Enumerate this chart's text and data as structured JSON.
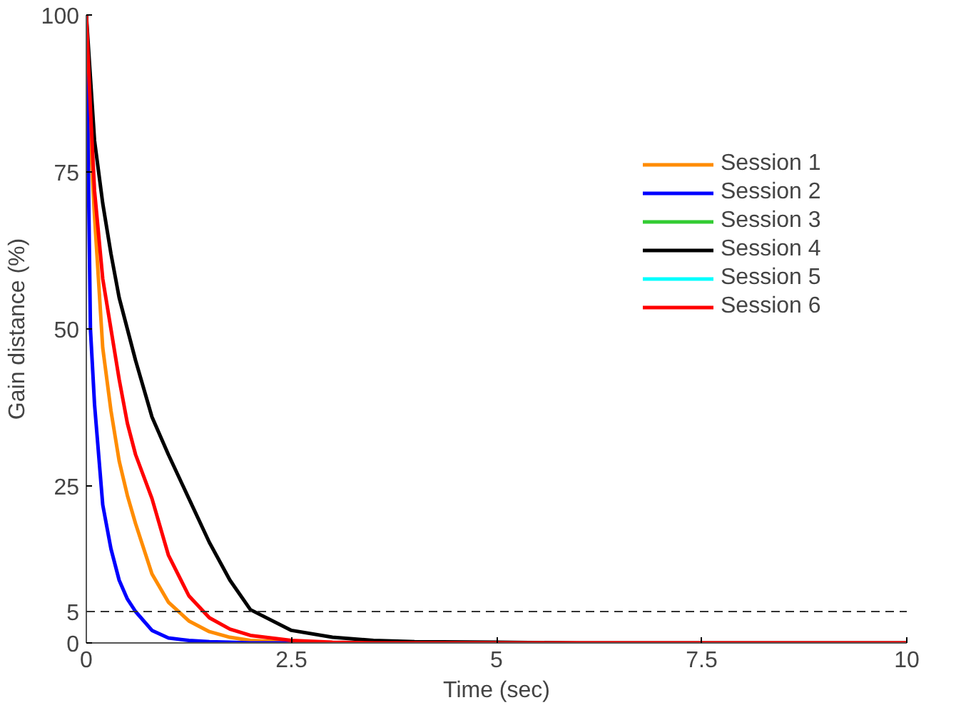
{
  "chart_data": {
    "type": "line",
    "xlabel": "Time (sec)",
    "ylabel": "Gain distance (%)",
    "x": [
      0,
      0.05,
      0.1,
      0.2,
      0.3,
      0.4,
      0.5,
      0.6,
      0.8,
      1.0,
      1.25,
      1.5,
      1.75,
      2,
      2.5,
      3,
      3.5,
      4,
      5,
      6,
      8,
      10
    ],
    "series": [
      {
        "name": "Session 1",
        "color": "#ff8c00",
        "values": [
          100,
          80,
          68,
          47,
          37,
          29,
          23.5,
          19,
          11,
          6.5,
          3.5,
          1.8,
          0.9,
          0.4,
          0.1,
          0,
          null,
          null,
          null,
          null,
          null,
          null
        ]
      },
      {
        "name": "Session 2",
        "color": "#0000ff",
        "values": [
          100,
          50,
          38,
          22,
          15,
          10,
          7,
          5,
          2,
          0.8,
          0.4,
          0.2,
          0.1,
          0,
          0,
          0,
          null,
          null,
          null,
          null,
          null,
          null
        ]
      },
      {
        "name": "Session 3",
        "color": "#33cc33",
        "values": [
          null,
          null,
          null,
          null,
          null,
          null,
          null,
          null,
          null,
          null,
          null,
          null,
          null,
          null,
          null,
          null,
          null,
          null,
          null,
          null,
          null,
          null
        ]
      },
      {
        "name": "Session 4",
        "color": "#000000",
        "values": [
          100,
          90,
          80,
          70,
          62,
          55,
          50,
          45,
          36,
          30,
          23,
          16,
          10,
          5.3,
          2,
          0.9,
          0.4,
          0.2,
          0.1,
          0,
          0,
          0
        ]
      },
      {
        "name": "Session 5",
        "color": "#00ffff",
        "values": [
          null,
          null,
          null,
          null,
          null,
          null,
          null,
          null,
          null,
          null,
          null,
          null,
          null,
          null,
          null,
          null,
          null,
          null,
          null,
          null,
          null,
          null
        ]
      },
      {
        "name": "Session 6",
        "color": "#ff0000",
        "values": [
          100,
          85,
          72,
          58,
          50,
          42,
          35,
          30,
          23,
          14,
          7.5,
          4,
          2.2,
          1.2,
          0.4,
          0.1,
          0,
          0,
          0,
          0,
          0,
          0
        ]
      }
    ],
    "xlim": [
      0,
      10
    ],
    "ylim": [
      0,
      100
    ],
    "xticks": [
      0,
      2.5,
      5,
      7.5,
      10
    ],
    "yticks": [
      0,
      5,
      25,
      50,
      75,
      100
    ],
    "ref_lines": [
      {
        "axis": "y",
        "value": 5,
        "color": "#333333",
        "line_style": "dashed"
      }
    ],
    "legend": "right",
    "grid": false,
    "line_style": "solid",
    "marker": "none"
  }
}
